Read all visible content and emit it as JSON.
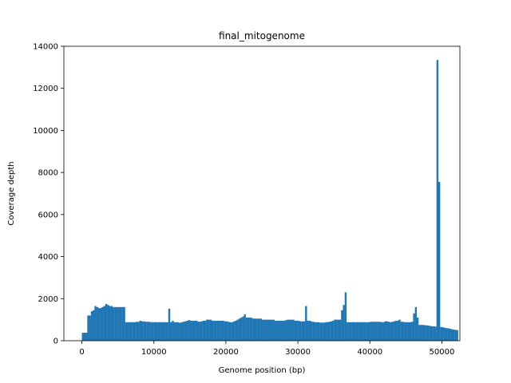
{
  "chart_data": {
    "type": "bar",
    "title": "final_mitogenome",
    "xlabel": "Genome position (bp)",
    "ylabel": "Coverage depth",
    "xlim": [
      -2500,
      52500
    ],
    "ylim": [
      0,
      14000
    ],
    "xticks": [
      0,
      10000,
      20000,
      30000,
      40000,
      50000
    ],
    "yticks": [
      0,
      2000,
      4000,
      6000,
      8000,
      10000,
      12000,
      14000
    ],
    "grid": false,
    "bar_color": "#1f77b4",
    "bin_width": 250,
    "x_start": 0,
    "values": [
      380,
      380,
      380,
      1200,
      1200,
      1400,
      1450,
      1650,
      1600,
      1550,
      1550,
      1600,
      1650,
      1750,
      1700,
      1650,
      1650,
      1600,
      1600,
      1600,
      1600,
      1600,
      1600,
      1600,
      880,
      880,
      880,
      880,
      880,
      880,
      900,
      900,
      950,
      920,
      920,
      900,
      900,
      900,
      880,
      880,
      880,
      880,
      880,
      880,
      880,
      880,
      880,
      880,
      1520,
      880,
      950,
      880,
      880,
      880,
      850,
      880,
      900,
      920,
      950,
      980,
      950,
      950,
      950,
      950,
      920,
      900,
      920,
      950,
      950,
      1000,
      1000,
      1000,
      950,
      950,
      950,
      950,
      950,
      950,
      950,
      920,
      920,
      900,
      880,
      880,
      920,
      950,
      1000,
      1050,
      1100,
      1150,
      1250,
      1100,
      1100,
      1100,
      1080,
      1050,
      1050,
      1050,
      1050,
      1050,
      1000,
      1000,
      1000,
      1000,
      1000,
      1000,
      1000,
      950,
      950,
      950,
      950,
      950,
      950,
      980,
      1000,
      1000,
      1000,
      1000,
      950,
      950,
      950,
      920,
      920,
      920,
      1650,
      950,
      950,
      920,
      900,
      880,
      880,
      880,
      860,
      860,
      860,
      880,
      880,
      900,
      920,
      950,
      1000,
      1000,
      1000,
      1000,
      1450,
      1700,
      2300,
      880,
      880,
      880,
      880,
      880,
      880,
      880,
      880,
      880,
      880,
      880,
      880,
      880,
      900,
      900,
      900,
      900,
      900,
      900,
      880,
      880,
      920,
      920,
      900,
      880,
      900,
      920,
      950,
      950,
      1000,
      900,
      900,
      880,
      880,
      880,
      880,
      900,
      1300,
      1600,
      1100,
      750,
      750,
      750,
      740,
      730,
      720,
      700,
      690,
      680,
      670,
      13350,
      7550,
      650,
      640,
      620,
      600,
      590,
      570,
      550,
      530,
      520,
      500
    ]
  }
}
